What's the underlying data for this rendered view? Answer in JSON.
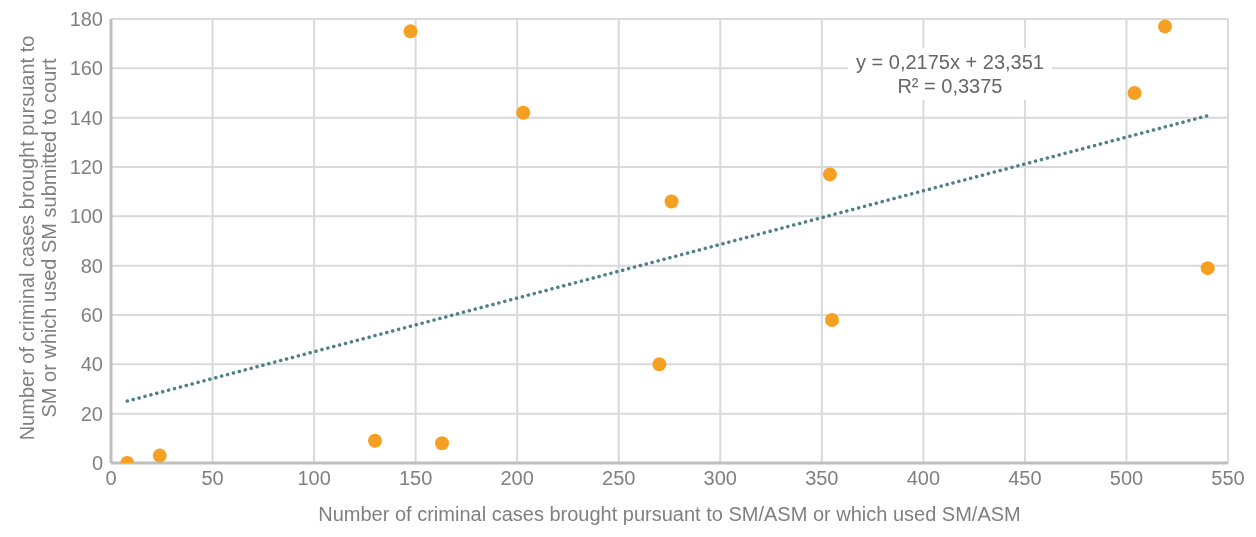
{
  "chart_data": {
    "type": "scatter",
    "xlabel": "Number of criminal cases brought pursuant to SM/ASM or which used SM/ASM",
    "ylabel": "Number of criminal cases brought pursuant to SM or which used SM submitted to court",
    "annotations": [
      "y = 0,2175x + 23,351",
      "R² = 0,3375"
    ],
    "series": [
      {
        "color": "#f5a023",
        "x": [
          8,
          24,
          130,
          147.5,
          163,
          203,
          270,
          276,
          354,
          355,
          504,
          519,
          540
        ],
        "values": [
          0,
          3,
          9,
          175,
          8,
          142,
          40,
          106,
          117,
          58,
          150,
          177,
          79
        ]
      },
      {
        "type": "line",
        "color": "#4f8088",
        "line_style": "dotted",
        "marker": "none",
        "x": [
          8,
          540
        ],
        "values": [
          25.1,
          140.8
        ]
      }
    ],
    "xlim": [
      0,
      550
    ],
    "xticks": [
      0,
      50,
      100,
      150,
      200,
      250,
      300,
      350,
      400,
      450,
      500,
      550
    ],
    "ylim": [
      0,
      180
    ],
    "yticks": [
      0,
      20,
      40,
      60,
      80,
      100,
      120,
      140,
      160,
      180
    ],
    "grid": true,
    "marker": "circle"
  }
}
